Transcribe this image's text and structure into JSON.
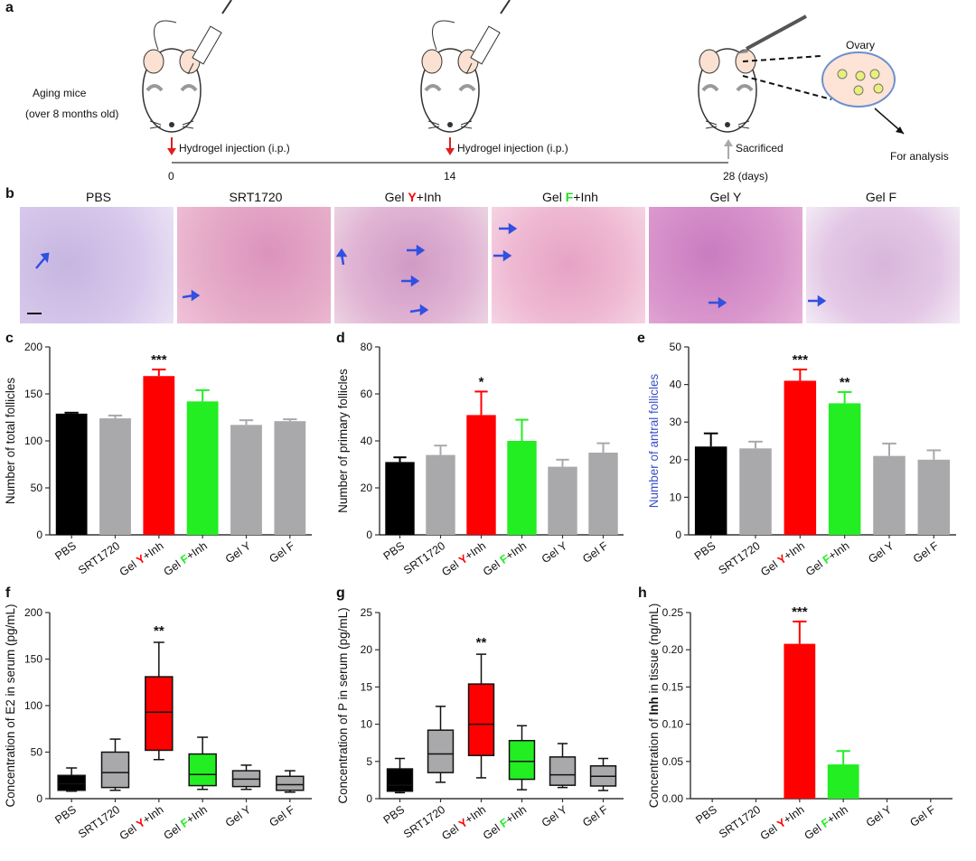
{
  "panel_labels": {
    "a": "a",
    "b": "b",
    "c": "c",
    "d": "d",
    "e": "e",
    "f": "f",
    "g": "g",
    "h": "h"
  },
  "schematic": {
    "subject_line1": "Aging mice",
    "subject_line2": "(over 8 months old)",
    "events": [
      {
        "day": "0",
        "label": "Hydrogel injection (i.p.)"
      },
      {
        "day": "14",
        "label": "Hydrogel injection (i.p.)"
      },
      {
        "day": "28 (days)",
        "label": "Sacrificed"
      }
    ],
    "organ_label": "Ovary",
    "analysis_label": "For analysis"
  },
  "histology": [
    {
      "title": "PBS"
    },
    {
      "title": "SRT1720"
    },
    {
      "title_pre": "Gel ",
      "title_mid": "Y",
      "title_post": "+Inh"
    },
    {
      "title_pre": "Gel ",
      "title_mid": "F",
      "title_post": "+Inh"
    },
    {
      "title": "Gel Y"
    },
    {
      "title": "Gel F"
    }
  ],
  "colors": {
    "PBS": "#000000",
    "SRT1720": "#a9a9ab",
    "GelY_Inh": "#ff0000",
    "GelF_Inh": "#22ee22",
    "GelY": "#a9a9ab",
    "GelF": "#a9a9ab",
    "accent_blue": "#3a4fc8"
  },
  "categories": [
    {
      "pre": "PBS",
      "mid": "",
      "post": ""
    },
    {
      "pre": "SRT1720",
      "mid": "",
      "post": ""
    },
    {
      "pre": "Gel ",
      "mid": "Y",
      "post": "+Inh"
    },
    {
      "pre": "Gel ",
      "mid": "F",
      "post": "+Inh"
    },
    {
      "pre": "Gel Y",
      "mid": "",
      "post": ""
    },
    {
      "pre": "Gel F",
      "mid": "",
      "post": ""
    }
  ],
  "chart_data": [
    {
      "id": "c",
      "type": "bar",
      "ylabel": "Number of total follicles",
      "ylim": [
        0,
        200
      ],
      "yticks": [
        0,
        50,
        100,
        150,
        200
      ],
      "values": [
        129,
        124,
        169,
        142,
        117,
        121
      ],
      "errors": [
        1,
        3,
        7,
        12,
        5,
        2
      ],
      "sig": [
        "",
        "",
        "***",
        "",
        "",
        ""
      ]
    },
    {
      "id": "d",
      "type": "bar",
      "ylabel": "Number of primary follicles",
      "ylim": [
        0,
        80
      ],
      "yticks": [
        0,
        20,
        40,
        60,
        80
      ],
      "values": [
        31,
        34,
        51,
        40,
        29,
        35
      ],
      "errors": [
        2,
        4,
        10,
        9,
        3,
        4
      ],
      "sig": [
        "",
        "",
        "*",
        "",
        "",
        ""
      ]
    },
    {
      "id": "e",
      "type": "bar",
      "ylabel": "Number of antral follicles",
      "ylim": [
        0,
        50
      ],
      "yticks": [
        0,
        10,
        20,
        30,
        40,
        50
      ],
      "values": [
        23.5,
        23,
        41,
        35,
        21,
        20
      ],
      "errors": [
        3.5,
        1.8,
        3,
        3,
        3.3,
        2.5
      ],
      "sig": [
        "",
        "",
        "***",
        "**",
        "",
        ""
      ]
    },
    {
      "id": "f",
      "type": "box",
      "ylabel": "Concentration of E2 in serum (pg/mL)",
      "ylim": [
        0,
        200
      ],
      "yticks": [
        0,
        50,
        100,
        150,
        200
      ],
      "boxes": [
        {
          "min": 8,
          "q1": 9,
          "median": 16,
          "q3": 25,
          "max": 33
        },
        {
          "min": 9,
          "q1": 12,
          "median": 28,
          "q3": 50,
          "max": 64
        },
        {
          "min": 42,
          "q1": 52,
          "median": 93,
          "q3": 131,
          "max": 168
        },
        {
          "min": 10,
          "q1": 14,
          "median": 26,
          "q3": 48,
          "max": 66
        },
        {
          "min": 10,
          "q1": 13,
          "median": 21,
          "q3": 30,
          "max": 36
        },
        {
          "min": 7,
          "q1": 9,
          "median": 15,
          "q3": 24,
          "max": 30
        }
      ],
      "sig": [
        "",
        "",
        "**",
        "",
        "",
        ""
      ]
    },
    {
      "id": "g",
      "type": "box",
      "ylabel": "Concentration of P in serum (pg/mL)",
      "ylim": [
        0,
        25
      ],
      "yticks": [
        0,
        5,
        10,
        15,
        20,
        25
      ],
      "boxes": [
        {
          "min": 0.8,
          "q1": 1,
          "median": 1.8,
          "q3": 4,
          "max": 5.4
        },
        {
          "min": 2.2,
          "q1": 3.5,
          "median": 6,
          "q3": 9.2,
          "max": 12.4
        },
        {
          "min": 2.8,
          "q1": 5.8,
          "median": 10,
          "q3": 15.4,
          "max": 19.4
        },
        {
          "min": 1.2,
          "q1": 2.6,
          "median": 5,
          "q3": 7.8,
          "max": 9.8
        },
        {
          "min": 1.5,
          "q1": 1.8,
          "median": 3.2,
          "q3": 5.6,
          "max": 7.4
        },
        {
          "min": 1.1,
          "q1": 1.7,
          "median": 3,
          "q3": 4.4,
          "max": 5.4
        }
      ],
      "sig": [
        "",
        "",
        "**",
        "",
        "",
        ""
      ]
    },
    {
      "id": "h",
      "type": "bar",
      "ylabel_pre": "Concentration of ",
      "ylabel_bold": "Inh",
      "ylabel_post": " in tissue (ng/mL)",
      "ylim": [
        0,
        0.25
      ],
      "yticks": [
        "0.00",
        "0.05",
        "0.10",
        "0.15",
        "0.20",
        "0.25"
      ],
      "values": [
        0,
        0,
        0.208,
        0.046,
        0,
        0
      ],
      "errors": [
        0,
        0,
        0.03,
        0.018,
        0,
        0
      ],
      "sig": [
        "",
        "",
        "***",
        "",
        "",
        ""
      ]
    }
  ]
}
